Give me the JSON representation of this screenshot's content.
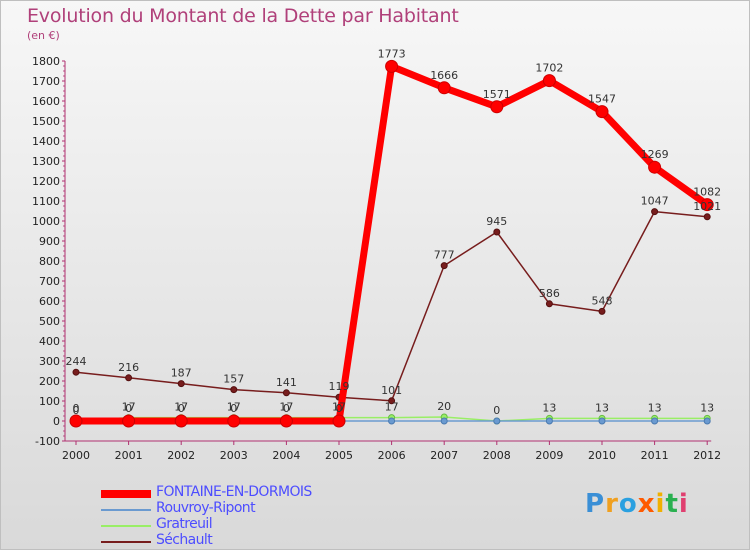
{
  "title": "Evolution du Montant de la Dette par Habitant",
  "unit": "(en €)",
  "logo": "Proxiti",
  "chart_data": {
    "type": "line",
    "title": "Evolution du Montant de la Dette par Habitant",
    "ylabel": "(en €)",
    "xlabel": "",
    "categories": [
      "2000",
      "2001",
      "2002",
      "2003",
      "2004",
      "2005",
      "2006",
      "2007",
      "2008",
      "2009",
      "2010",
      "2011",
      "2012"
    ],
    "ylim": [
      -100,
      1800
    ],
    "yticks": [
      -100,
      0,
      100,
      200,
      300,
      400,
      500,
      600,
      700,
      800,
      900,
      1000,
      1100,
      1200,
      1300,
      1400,
      1500,
      1600,
      1700,
      1800
    ],
    "grid": false,
    "legend_position": "bottom-left",
    "series": [
      {
        "name": "FONTAINE-EN-DORMOIS",
        "color": "#ff0000",
        "values": [
          0,
          0,
          0,
          0,
          0,
          0,
          1773,
          1666,
          1571,
          1702,
          1547,
          1269,
          1082
        ]
      },
      {
        "name": "Rouvroy-Ripont",
        "color": "#6a9ad0",
        "values": [
          0,
          0,
          0,
          0,
          0,
          0,
          0,
          0,
          0,
          0,
          0,
          0,
          0
        ]
      },
      {
        "name": "Gratreuil",
        "color": "#99ee66",
        "values": [
          0,
          17,
          17,
          17,
          17,
          17,
          17,
          20,
          0,
          13,
          13,
          13,
          13
        ]
      },
      {
        "name": "Séchault",
        "color": "#771d1d",
        "values": [
          244,
          216,
          187,
          157,
          141,
          119,
          101,
          777,
          945,
          586,
          548,
          1047,
          1021
        ]
      }
    ]
  }
}
